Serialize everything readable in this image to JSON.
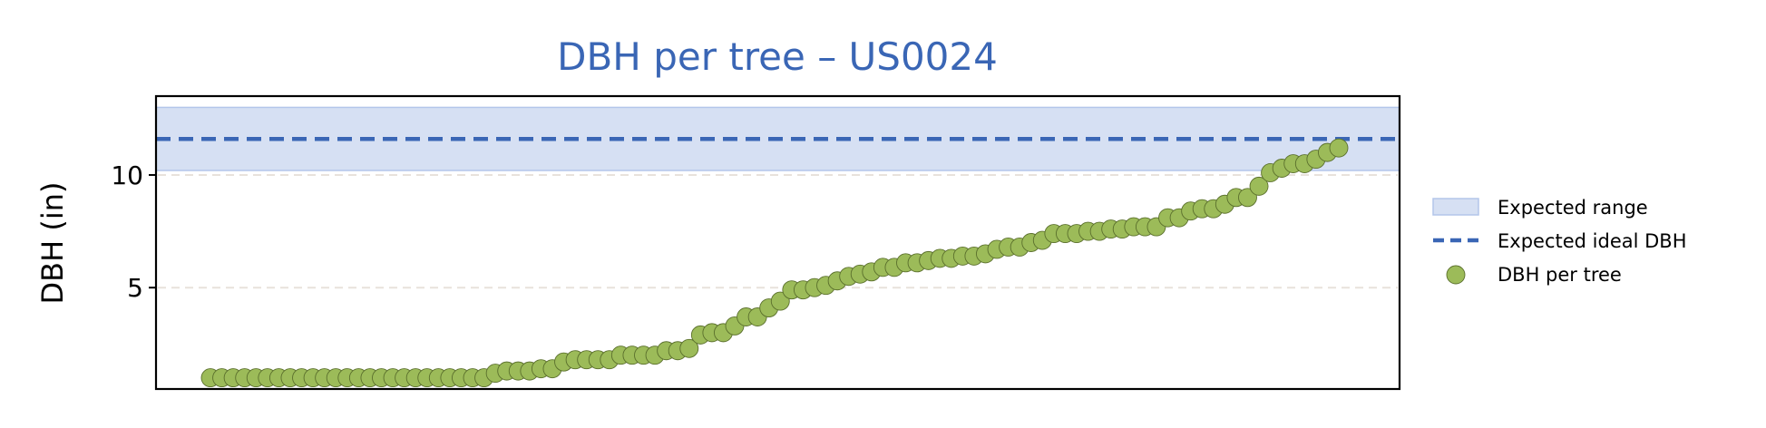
{
  "colors": {
    "title": "#3a66b5",
    "band_fill": "#d6e0f3",
    "band_edge": "#b3c6ea",
    "ideal_line": "#3a66b5",
    "point_fill": "#9cbb59",
    "point_edge": "#5a6f2c",
    "grid": "#e8e2dc"
  },
  "chart_data": {
    "type": "scatter",
    "title": "DBH per tree – US0024",
    "xlabel": "",
    "ylabel": "DBH (in)",
    "ylim": [
      0.5,
      13.5
    ],
    "yticks": [
      5,
      10
    ],
    "ytick_labels": [
      "5",
      "10"
    ],
    "xticks_visible": false,
    "grid": "horizontal dashed",
    "legend_position": "right, outside",
    "expected_range": [
      10.2,
      13.0
    ],
    "expected_ideal": 11.6,
    "legend": [
      {
        "label": "Expected range",
        "kind": "band"
      },
      {
        "label": "Expected ideal DBH",
        "kind": "dashed-line"
      },
      {
        "label": "DBH per tree",
        "kind": "marker"
      }
    ],
    "series": [
      {
        "name": "DBH per tree",
        "values": [
          1.0,
          1.0,
          1.0,
          1.0,
          1.0,
          1.0,
          1.0,
          1.0,
          1.0,
          1.0,
          1.0,
          1.0,
          1.0,
          1.0,
          1.0,
          1.0,
          1.0,
          1.0,
          1.0,
          1.0,
          1.0,
          1.0,
          1.0,
          1.0,
          1.0,
          1.2,
          1.3,
          1.3,
          1.3,
          1.4,
          1.4,
          1.7,
          1.8,
          1.8,
          1.8,
          1.8,
          2.0,
          2.0,
          2.0,
          2.0,
          2.2,
          2.2,
          2.3,
          2.9,
          3.0,
          3.0,
          3.3,
          3.7,
          3.7,
          4.1,
          4.4,
          4.9,
          4.9,
          5.0,
          5.1,
          5.3,
          5.5,
          5.6,
          5.7,
          5.9,
          5.9,
          6.1,
          6.1,
          6.2,
          6.3,
          6.3,
          6.4,
          6.4,
          6.5,
          6.7,
          6.8,
          6.8,
          7.0,
          7.1,
          7.4,
          7.4,
          7.4,
          7.5,
          7.5,
          7.6,
          7.6,
          7.7,
          7.7,
          7.7,
          8.1,
          8.1,
          8.4,
          8.5,
          8.5,
          8.7,
          9.0,
          9.0,
          9.5,
          10.1,
          10.3,
          10.5,
          10.5,
          10.7,
          11.0,
          11.2
        ]
      }
    ]
  }
}
